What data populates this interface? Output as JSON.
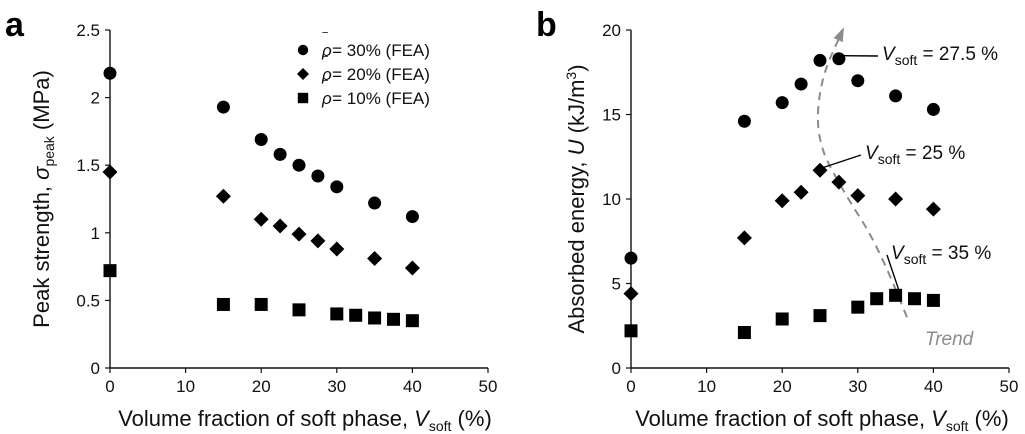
{
  "chart_data": [
    {
      "panel": "a",
      "type": "scatter",
      "xlabel_main": "Volume fraction of soft phase, ",
      "xlabel_var": "V",
      "xlabel_sub": "soft",
      "xlabel_unit": " (%)",
      "ylabel_main": "Peak strength, ",
      "ylabel_var": "σ",
      "ylabel_sub": "peak",
      "ylabel_unit": " (MPa)",
      "xlim": [
        0,
        50
      ],
      "ylim": [
        0,
        2.5
      ],
      "xticks": [
        "0",
        "10",
        "20",
        "30",
        "40",
        "50"
      ],
      "yticks": [
        "0",
        "0.5",
        "1",
        "1.5",
        "2",
        "2.5"
      ],
      "legend_position": "top-right",
      "series": [
        {
          "name": " = 30% (FEA)",
          "marker": "circle",
          "x": [
            0,
            15,
            20,
            22.5,
            25,
            27.5,
            30,
            35,
            40
          ],
          "y": [
            2.18,
            1.93,
            1.69,
            1.58,
            1.5,
            1.42,
            1.34,
            1.22,
            1.12
          ]
        },
        {
          "name": " = 20% (FEA)",
          "marker": "diamond",
          "x": [
            0,
            15,
            20,
            22.5,
            25,
            27.5,
            30,
            35,
            40
          ],
          "y": [
            1.45,
            1.27,
            1.1,
            1.05,
            0.99,
            0.94,
            0.88,
            0.81,
            0.74
          ]
        },
        {
          "name": " = 10% (FEA)",
          "marker": "square",
          "x": [
            0,
            15,
            20,
            25,
            30,
            32.5,
            35,
            37.5,
            40
          ],
          "y": [
            0.72,
            0.47,
            0.47,
            0.43,
            0.4,
            0.39,
            0.37,
            0.36,
            0.35
          ]
        }
      ]
    },
    {
      "panel": "b",
      "type": "scatter",
      "xlabel_main": "Volume fraction of soft phase, ",
      "xlabel_var": "V",
      "xlabel_sub": "soft",
      "xlabel_unit": " (%)",
      "ylabel_main": "Absorbed energy, ",
      "ylabel_var": "U",
      "ylabel_unit": " (kJ/m",
      "ylabel_sup": "3",
      "ylabel_close": ")",
      "xlim": [
        0,
        50
      ],
      "ylim": [
        0,
        20
      ],
      "xticks": [
        "0",
        "10",
        "20",
        "30",
        "40",
        "50"
      ],
      "yticks": [
        "0",
        "5",
        "10",
        "15",
        "20"
      ],
      "series": [
        {
          "marker": "circle",
          "x": [
            0,
            15,
            20,
            22.5,
            25,
            27.5,
            30,
            35,
            40
          ],
          "y": [
            6.5,
            14.6,
            15.7,
            16.8,
            18.2,
            18.3,
            17.0,
            16.1,
            15.3
          ]
        },
        {
          "marker": "diamond",
          "x": [
            0,
            15,
            20,
            22.5,
            25,
            27.5,
            30,
            35,
            40
          ],
          "y": [
            4.4,
            7.7,
            9.9,
            10.4,
            11.7,
            11.0,
            10.2,
            10.0,
            9.4
          ]
        },
        {
          "marker": "square",
          "x": [
            0,
            15,
            20,
            25,
            30,
            32.5,
            35,
            37.5,
            40
          ],
          "y": [
            2.2,
            2.1,
            2.9,
            3.1,
            3.6,
            4.1,
            4.3,
            4.1,
            4.0
          ]
        }
      ],
      "annotations": [
        {
          "text_var": "V",
          "text_sub": "soft",
          "text_val": " = 27.5 %",
          "point": [
            27.5,
            18.3
          ]
        },
        {
          "text_var": "V",
          "text_sub": "soft",
          "text_val": " = 25 %",
          "point": [
            25,
            11.7
          ]
        },
        {
          "text_var": "V",
          "text_sub": "soft",
          "text_val": " = 35 %",
          "point": [
            35,
            4.3
          ]
        }
      ],
      "trend_label": "Trend",
      "trend_color": "#8c8c8c",
      "trend_path": [
        [
          36.5,
          3.0
        ],
        [
          33,
          7.0
        ],
        [
          28,
          10.5
        ],
        [
          24.5,
          13.5
        ],
        [
          25,
          17.0
        ],
        [
          28,
          20.0
        ]
      ]
    }
  ]
}
